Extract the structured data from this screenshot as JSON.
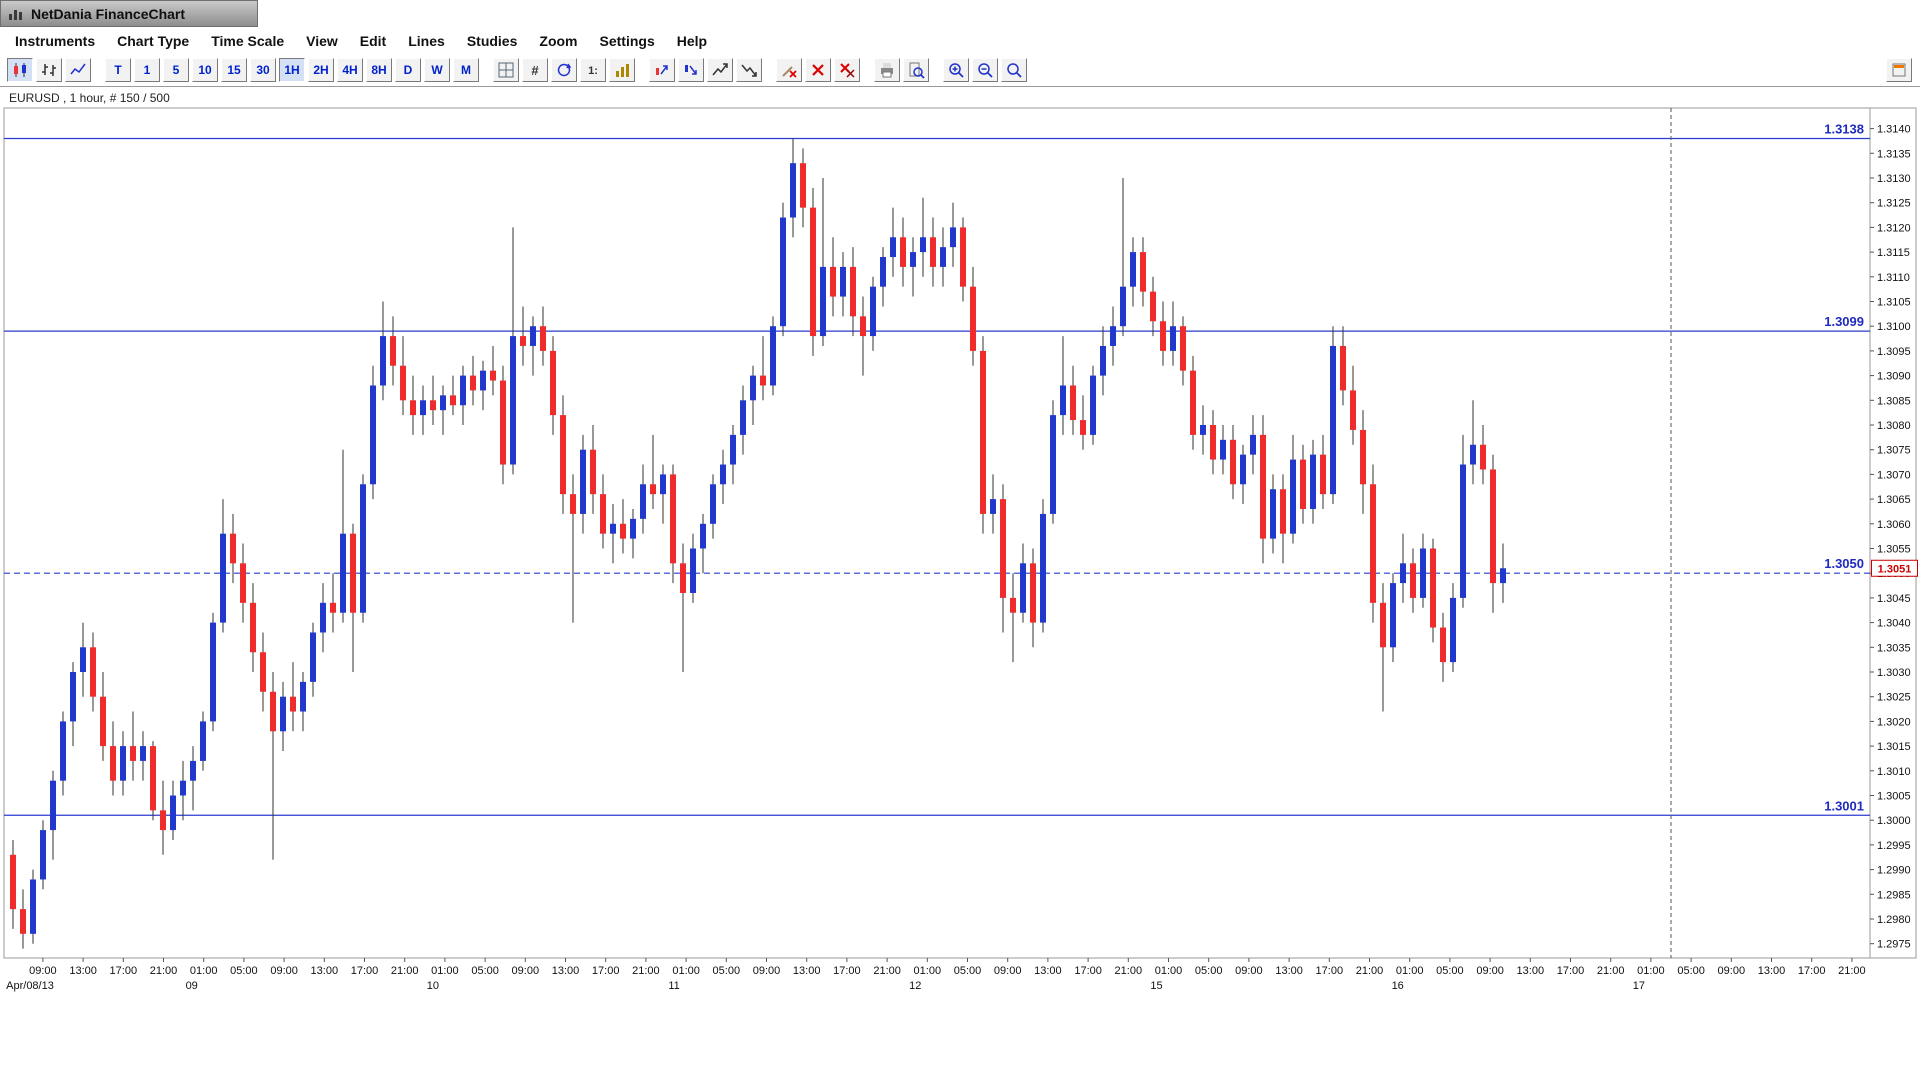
{
  "window": {
    "title": "NetDania FinanceChart"
  },
  "menu": {
    "items": [
      "Instruments",
      "Chart Type",
      "Time Scale",
      "View",
      "Edit",
      "Lines",
      "Studies",
      "Zoom",
      "Settings",
      "Help"
    ]
  },
  "toolbar": {
    "chart_type_buttons": [
      {
        "name": "candlestick-chart",
        "selected": true
      },
      {
        "name": "ohlc-bar-chart",
        "selected": false
      },
      {
        "name": "line-chart",
        "selected": false
      }
    ],
    "timeframe_buttons": [
      {
        "label": "T",
        "selected": false
      },
      {
        "label": "1",
        "selected": false
      },
      {
        "label": "5",
        "selected": false
      },
      {
        "label": "10",
        "selected": false
      },
      {
        "label": "15",
        "selected": false
      },
      {
        "label": "30",
        "selected": false
      },
      {
        "label": "1H",
        "selected": true
      },
      {
        "label": "2H",
        "selected": false
      },
      {
        "label": "4H",
        "selected": false
      },
      {
        "label": "8H",
        "selected": false
      },
      {
        "label": "D",
        "selected": false
      },
      {
        "label": "W",
        "selected": false
      },
      {
        "label": "M",
        "selected": false
      }
    ],
    "icon_groups": [
      [
        "grid-layout",
        "hash-grid",
        "refresh",
        "price-scale",
        "volume-study"
      ],
      [
        "candle-arrows-up",
        "candle-arrows-down",
        "candle-arrows-up-2",
        "candle-arrows-down-2"
      ],
      [
        "remove-drawing",
        "delete-cross",
        "delete-all"
      ],
      [
        "print",
        "print-preview"
      ],
      [
        "zoom-in",
        "zoom-out",
        "zoom-reset"
      ]
    ],
    "right_button": "quote-list-panel"
  },
  "chart": {
    "status_label": "EURUSD , 1 hour, # 150 / 500"
  },
  "chart_data": {
    "type": "candlestick",
    "symbol": "EURUSD",
    "interval": "1 hour",
    "bars_shown": 150,
    "bars_total": 500,
    "ohlc_format": [
      "open",
      "high",
      "low",
      "close"
    ],
    "colors": {
      "up": "#2038cc",
      "down": "#ee2c2c",
      "wick": "#333333",
      "level": "#2b3bcf",
      "axis_text": "#111111",
      "marker": "#cc0000"
    },
    "y_axis": {
      "min": 1.2975,
      "max": 1.314,
      "step": 0.0005,
      "decimals": 4
    },
    "levels": [
      {
        "label": "1.3138",
        "price": 1.3138,
        "style": "solid"
      },
      {
        "label": "1.3099",
        "price": 1.3099,
        "style": "solid"
      },
      {
        "label": "1.3050",
        "price": 1.305,
        "style": "dashed"
      },
      {
        "label": "1.3001",
        "price": 1.3001,
        "style": "solid"
      }
    ],
    "price_marker": {
      "label": "1.3051",
      "price": 1.3051
    },
    "divider": {
      "style": "dashed",
      "time_label_index": 40.5
    },
    "x_axis": {
      "time_labels": [
        "09:00",
        "13:00",
        "17:00",
        "21:00",
        "01:00",
        "05:00",
        "09:00",
        "13:00",
        "17:00",
        "21:00",
        "01:00",
        "05:00",
        "09:00",
        "13:00",
        "17:00",
        "21:00",
        "01:00",
        "05:00",
        "09:00",
        "13:00",
        "17:00",
        "21:00",
        "01:00",
        "05:00",
        "09:00",
        "13:00",
        "17:00",
        "21:00",
        "01:00",
        "05:00",
        "09:00",
        "13:00",
        "17:00",
        "21:00",
        "01:00",
        "05:00",
        "09:00",
        "13:00",
        "17:00",
        "21:00",
        "01:00",
        "05:00",
        "09:00",
        "13:00",
        "17:00",
        "21:00"
      ],
      "date_labels": [
        {
          "label": "Apr/08/13",
          "index": 0
        },
        {
          "label": "09",
          "index": 4
        },
        {
          "label": "10",
          "index": 10
        },
        {
          "label": "11",
          "index": 16
        },
        {
          "label": "12",
          "index": 22
        },
        {
          "label": "15",
          "index": 28
        },
        {
          "label": "16",
          "index": 34
        },
        {
          "label": "17",
          "index": 40
        }
      ]
    },
    "candles": [
      [
        1.2993,
        1.2996,
        1.2978,
        1.2982
      ],
      [
        1.2982,
        1.2986,
        1.2974,
        1.2977
      ],
      [
        1.2977,
        1.299,
        1.2975,
        1.2988
      ],
      [
        1.2988,
        1.3,
        1.2986,
        1.2998
      ],
      [
        1.2998,
        1.301,
        1.2992,
        1.3008
      ],
      [
        1.3008,
        1.3022,
        1.3005,
        1.302
      ],
      [
        1.302,
        1.3032,
        1.3015,
        1.303
      ],
      [
        1.303,
        1.304,
        1.3025,
        1.3035
      ],
      [
        1.3035,
        1.3038,
        1.3022,
        1.3025
      ],
      [
        1.3025,
        1.303,
        1.3012,
        1.3015
      ],
      [
        1.3015,
        1.302,
        1.3005,
        1.3008
      ],
      [
        1.3008,
        1.3018,
        1.3005,
        1.3015
      ],
      [
        1.3015,
        1.3022,
        1.3008,
        1.3012
      ],
      [
        1.3012,
        1.3018,
        1.3008,
        1.3015
      ],
      [
        1.3015,
        1.3016,
        1.3,
        1.3002
      ],
      [
        1.3002,
        1.3008,
        1.2993,
        1.2998
      ],
      [
        1.2998,
        1.3008,
        1.2996,
        1.3005
      ],
      [
        1.3005,
        1.3012,
        1.3,
        1.3008
      ],
      [
        1.3008,
        1.3015,
        1.3002,
        1.3012
      ],
      [
        1.3012,
        1.3022,
        1.301,
        1.302
      ],
      [
        1.302,
        1.3042,
        1.3018,
        1.304
      ],
      [
        1.304,
        1.3065,
        1.3038,
        1.3058
      ],
      [
        1.3058,
        1.3062,
        1.3048,
        1.3052
      ],
      [
        1.3052,
        1.3056,
        1.304,
        1.3044
      ],
      [
        1.3044,
        1.3048,
        1.303,
        1.3034
      ],
      [
        1.3034,
        1.3038,
        1.3022,
        1.3026
      ],
      [
        1.3026,
        1.303,
        1.2992,
        1.3018
      ],
      [
        1.3018,
        1.3028,
        1.3014,
        1.3025
      ],
      [
        1.3025,
        1.3032,
        1.3018,
        1.3022
      ],
      [
        1.3022,
        1.303,
        1.3018,
        1.3028
      ],
      [
        1.3028,
        1.304,
        1.3025,
        1.3038
      ],
      [
        1.3038,
        1.3048,
        1.3034,
        1.3044
      ],
      [
        1.3044,
        1.305,
        1.3038,
        1.3042
      ],
      [
        1.3042,
        1.3075,
        1.304,
        1.3058
      ],
      [
        1.3058,
        1.306,
        1.303,
        1.3042
      ],
      [
        1.3042,
        1.307,
        1.304,
        1.3068
      ],
      [
        1.3068,
        1.3092,
        1.3065,
        1.3088
      ],
      [
        1.3088,
        1.3105,
        1.3085,
        1.3098
      ],
      [
        1.3098,
        1.3102,
        1.3088,
        1.3092
      ],
      [
        1.3092,
        1.3098,
        1.3082,
        1.3085
      ],
      [
        1.3085,
        1.309,
        1.3078,
        1.3082
      ],
      [
        1.3082,
        1.3088,
        1.3078,
        1.3085
      ],
      [
        1.3085,
        1.309,
        1.308,
        1.3083
      ],
      [
        1.3083,
        1.3088,
        1.3078,
        1.3086
      ],
      [
        1.3086,
        1.309,
        1.3082,
        1.3084
      ],
      [
        1.3084,
        1.3092,
        1.308,
        1.309
      ],
      [
        1.309,
        1.3094,
        1.3084,
        1.3087
      ],
      [
        1.3087,
        1.3093,
        1.3083,
        1.3091
      ],
      [
        1.3091,
        1.3096,
        1.3086,
        1.3089
      ],
      [
        1.3089,
        1.3092,
        1.3068,
        1.3072
      ],
      [
        1.3072,
        1.312,
        1.307,
        1.3098
      ],
      [
        1.3098,
        1.3104,
        1.3092,
        1.3096
      ],
      [
        1.3096,
        1.3102,
        1.309,
        1.31
      ],
      [
        1.31,
        1.3104,
        1.3092,
        1.3095
      ],
      [
        1.3095,
        1.3098,
        1.3078,
        1.3082
      ],
      [
        1.3082,
        1.3086,
        1.3062,
        1.3066
      ],
      [
        1.3066,
        1.307,
        1.304,
        1.3062
      ],
      [
        1.3062,
        1.3078,
        1.3058,
        1.3075
      ],
      [
        1.3075,
        1.308,
        1.3062,
        1.3066
      ],
      [
        1.3066,
        1.307,
        1.3055,
        1.3058
      ],
      [
        1.3058,
        1.3064,
        1.3052,
        1.306
      ],
      [
        1.306,
        1.3065,
        1.3054,
        1.3057
      ],
      [
        1.3057,
        1.3063,
        1.3053,
        1.3061
      ],
      [
        1.3061,
        1.3072,
        1.3058,
        1.3068
      ],
      [
        1.3068,
        1.3078,
        1.3063,
        1.3066
      ],
      [
        1.3066,
        1.3072,
        1.306,
        1.307
      ],
      [
        1.307,
        1.3072,
        1.3048,
        1.3052
      ],
      [
        1.3052,
        1.3056,
        1.303,
        1.3046
      ],
      [
        1.3046,
        1.3058,
        1.3044,
        1.3055
      ],
      [
        1.3055,
        1.3062,
        1.305,
        1.306
      ],
      [
        1.306,
        1.307,
        1.3057,
        1.3068
      ],
      [
        1.3068,
        1.3075,
        1.3064,
        1.3072
      ],
      [
        1.3072,
        1.308,
        1.3068,
        1.3078
      ],
      [
        1.3078,
        1.3088,
        1.3074,
        1.3085
      ],
      [
        1.3085,
        1.3092,
        1.308,
        1.309
      ],
      [
        1.309,
        1.3098,
        1.3085,
        1.3088
      ],
      [
        1.3088,
        1.3102,
        1.3086,
        1.31
      ],
      [
        1.31,
        1.3125,
        1.3098,
        1.3122
      ],
      [
        1.3122,
        1.3138,
        1.3118,
        1.3133
      ],
      [
        1.3133,
        1.3136,
        1.312,
        1.3124
      ],
      [
        1.3124,
        1.3128,
        1.3094,
        1.3098
      ],
      [
        1.3098,
        1.313,
        1.3096,
        1.3112
      ],
      [
        1.3112,
        1.3118,
        1.3102,
        1.3106
      ],
      [
        1.3106,
        1.3115,
        1.3102,
        1.3112
      ],
      [
        1.3112,
        1.3116,
        1.3098,
        1.3102
      ],
      [
        1.3102,
        1.3106,
        1.309,
        1.3098
      ],
      [
        1.3098,
        1.311,
        1.3095,
        1.3108
      ],
      [
        1.3108,
        1.3116,
        1.3104,
        1.3114
      ],
      [
        1.3114,
        1.3124,
        1.311,
        1.3118
      ],
      [
        1.3118,
        1.3122,
        1.3108,
        1.3112
      ],
      [
        1.3112,
        1.3118,
        1.3106,
        1.3115
      ],
      [
        1.3115,
        1.3126,
        1.311,
        1.3118
      ],
      [
        1.3118,
        1.3122,
        1.3108,
        1.3112
      ],
      [
        1.3112,
        1.312,
        1.3108,
        1.3116
      ],
      [
        1.3116,
        1.3125,
        1.3112,
        1.312
      ],
      [
        1.312,
        1.3122,
        1.3105,
        1.3108
      ],
      [
        1.3108,
        1.3112,
        1.3092,
        1.3095
      ],
      [
        1.3095,
        1.3098,
        1.3058,
        1.3062
      ],
      [
        1.3062,
        1.307,
        1.3058,
        1.3065
      ],
      [
        1.3065,
        1.3068,
        1.3038,
        1.3045
      ],
      [
        1.3045,
        1.305,
        1.3032,
        1.3042
      ],
      [
        1.3042,
        1.3056,
        1.304,
        1.3052
      ],
      [
        1.3052,
        1.3055,
        1.3035,
        1.304
      ],
      [
        1.304,
        1.3065,
        1.3038,
        1.3062
      ],
      [
        1.3062,
        1.3085,
        1.306,
        1.3082
      ],
      [
        1.3082,
        1.3098,
        1.3078,
        1.3088
      ],
      [
        1.3088,
        1.3092,
        1.3078,
        1.3081
      ],
      [
        1.3081,
        1.3086,
        1.3075,
        1.3078
      ],
      [
        1.3078,
        1.3092,
        1.3076,
        1.309
      ],
      [
        1.309,
        1.31,
        1.3086,
        1.3096
      ],
      [
        1.3096,
        1.3104,
        1.3092,
        1.31
      ],
      [
        1.31,
        1.313,
        1.3098,
        1.3108
      ],
      [
        1.3108,
        1.3118,
        1.3104,
        1.3115
      ],
      [
        1.3115,
        1.3118,
        1.3104,
        1.3107
      ],
      [
        1.3107,
        1.311,
        1.3098,
        1.3101
      ],
      [
        1.3101,
        1.3105,
        1.3092,
        1.3095
      ],
      [
        1.3095,
        1.3105,
        1.3092,
        1.31
      ],
      [
        1.31,
        1.3102,
        1.3088,
        1.3091
      ],
      [
        1.3091,
        1.3094,
        1.3075,
        1.3078
      ],
      [
        1.3078,
        1.3084,
        1.3074,
        1.308
      ],
      [
        1.308,
        1.3083,
        1.307,
        1.3073
      ],
      [
        1.3073,
        1.308,
        1.307,
        1.3077
      ],
      [
        1.3077,
        1.308,
        1.3065,
        1.3068
      ],
      [
        1.3068,
        1.3076,
        1.3064,
        1.3074
      ],
      [
        1.3074,
        1.3082,
        1.307,
        1.3078
      ],
      [
        1.3078,
        1.3082,
        1.3052,
        1.3057
      ],
      [
        1.3057,
        1.307,
        1.3054,
        1.3067
      ],
      [
        1.3067,
        1.307,
        1.3052,
        1.3058
      ],
      [
        1.3058,
        1.3078,
        1.3056,
        1.3073
      ],
      [
        1.3073,
        1.3076,
        1.306,
        1.3063
      ],
      [
        1.3063,
        1.3077,
        1.306,
        1.3074
      ],
      [
        1.3074,
        1.3078,
        1.3063,
        1.3066
      ],
      [
        1.3066,
        1.31,
        1.3064,
        1.3096
      ],
      [
        1.3096,
        1.31,
        1.3084,
        1.3087
      ],
      [
        1.3087,
        1.3092,
        1.3076,
        1.3079
      ],
      [
        1.3079,
        1.3083,
        1.3062,
        1.3068
      ],
      [
        1.3068,
        1.3072,
        1.304,
        1.3044
      ],
      [
        1.3044,
        1.3048,
        1.3022,
        1.3035
      ],
      [
        1.3035,
        1.305,
        1.3032,
        1.3048
      ],
      [
        1.3048,
        1.3058,
        1.3044,
        1.3052
      ],
      [
        1.3052,
        1.3055,
        1.3042,
        1.3045
      ],
      [
        1.3045,
        1.3058,
        1.3043,
        1.3055
      ],
      [
        1.3055,
        1.3057,
        1.3036,
        1.3039
      ],
      [
        1.3039,
        1.3042,
        1.3028,
        1.3032
      ],
      [
        1.3032,
        1.3048,
        1.303,
        1.3045
      ],
      [
        1.3045,
        1.3078,
        1.3043,
        1.3072
      ],
      [
        1.3072,
        1.3085,
        1.3068,
        1.3076
      ],
      [
        1.3076,
        1.308,
        1.3068,
        1.3071
      ],
      [
        1.3071,
        1.3074,
        1.3042,
        1.3048
      ],
      [
        1.3048,
        1.3056,
        1.3044,
        1.3051
      ]
    ]
  }
}
